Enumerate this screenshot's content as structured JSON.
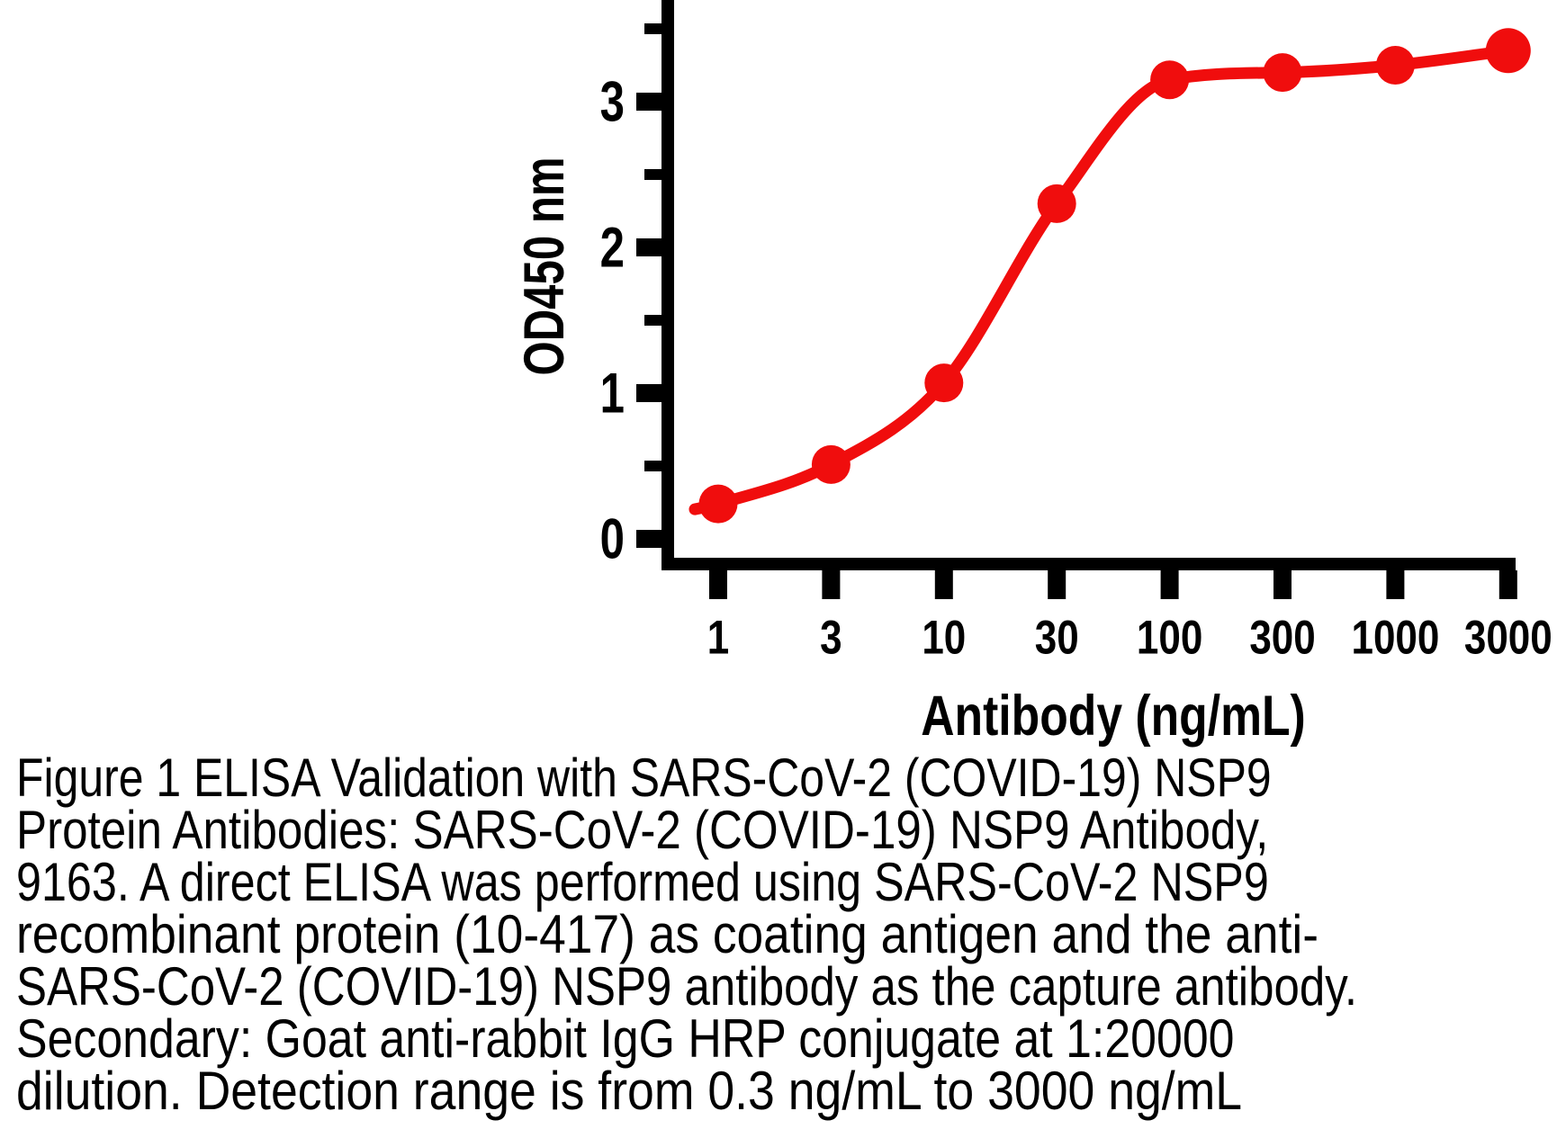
{
  "chart_data": {
    "type": "line",
    "xlabel": "Antibody (ng/mL)",
    "ylabel": "OD450 nm",
    "x_scale": "log",
    "x_tick_labels": [
      "1",
      "3",
      "10",
      "30",
      "100",
      "300",
      "1000",
      "3000"
    ],
    "y_tick_labels": [
      "0",
      "1",
      "2",
      "3"
    ],
    "y_minor_ticks": [
      0.5,
      1.5,
      2.5,
      3.5
    ],
    "ylim": [
      0,
      3.7
    ],
    "grid": false,
    "legend": false,
    "series": [
      {
        "color": "#f00d0d",
        "x": [
          1,
          3,
          10,
          30,
          100,
          300,
          1000,
          3000
        ],
        "y": [
          0.24,
          0.51,
          1.07,
          2.3,
          3.15,
          3.2,
          3.25,
          3.35
        ]
      }
    ]
  },
  "caption": {
    "lines": [
      "Figure 1 ELISA Validation with SARS-CoV-2 (COVID-19) NSP9",
      "Protein Antibodies: SARS-CoV-2 (COVID-19) NSP9 Antibody,",
      "9163. A direct ELISA was performed using SARS-CoV-2 NSP9",
      "recombinant protein (10-417) as coating antigen and the anti-",
      "SARS-CoV-2 (COVID-19) NSP9 antibody as the capture antibody.",
      "Secondary: Goat anti-rabbit IgG HRP conjugate at 1:20000",
      "dilution. Detection range is from 0.3 ng/mL to 3000 ng/mL"
    ]
  },
  "colors": {
    "curve": "#f00d0d",
    "axis": "#000000",
    "text": "#000000"
  }
}
